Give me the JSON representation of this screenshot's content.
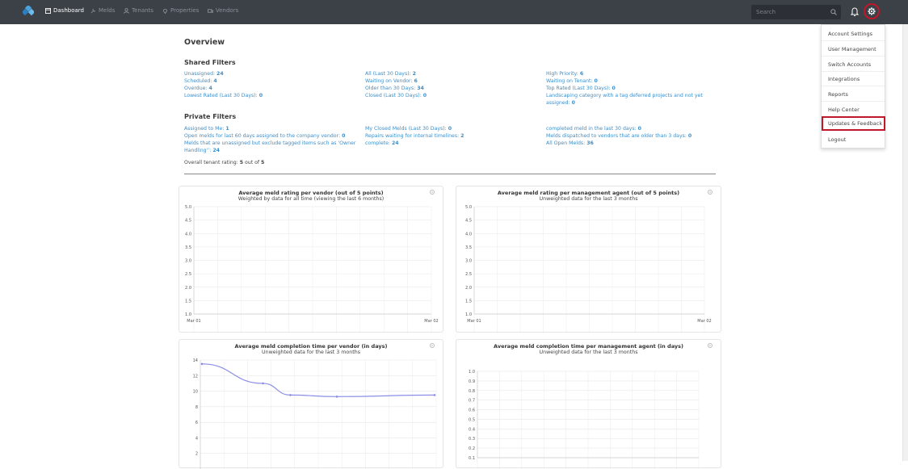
{
  "nav": {
    "items": [
      {
        "label": "Dashboard",
        "icon": "dashboard-icon",
        "active": true
      },
      {
        "label": "Melds",
        "icon": "wrench-icon",
        "active": false
      },
      {
        "label": "Tenants",
        "icon": "person-icon",
        "active": false
      },
      {
        "label": "Properties",
        "icon": "map-pin-icon",
        "active": false
      },
      {
        "label": "Vendors",
        "icon": "truck-icon",
        "active": false
      }
    ],
    "search_placeholder": "Search"
  },
  "overview": {
    "title": "Overview"
  },
  "shared_filters": {
    "title": "Shared Filters",
    "col1": [
      {
        "label": "Unassigned: ",
        "count": "24"
      },
      {
        "label": "Scheduled: ",
        "count": "4"
      },
      {
        "label": "Overdue: ",
        "count": "4"
      },
      {
        "label": "Lowest Rated (Last 30 Days): ",
        "count": "0"
      }
    ],
    "col2": [
      {
        "label": "All (Last 30 Days): ",
        "count": "2"
      },
      {
        "label": "Waiting on Vendor: ",
        "count": "6"
      },
      {
        "label": "Older than 30 Days: ",
        "count": "34"
      },
      {
        "label": "Closed (Last 30 Days): ",
        "count": "0"
      }
    ],
    "col3": [
      {
        "label": "High Priority: ",
        "count": "6"
      },
      {
        "label": "Waiting on Tenant: ",
        "count": "0"
      },
      {
        "label": "Top Rated (Last 30 Days): ",
        "count": "0"
      },
      {
        "label": "Landscaping category with a tag deferred projects and not yet assigned: ",
        "count": "0"
      }
    ]
  },
  "private_filters": {
    "title": "Private Filters",
    "col1": [
      {
        "label": "Assigned to Me: ",
        "count": "1"
      },
      {
        "label": "Open melds for last 60 days assigned to the company vendor: ",
        "count": "0"
      },
      {
        "label": "Melds that are unassigned but exclude tagged items such as 'Owner Handling'’: ",
        "count": "24"
      }
    ],
    "col2": [
      {
        "label": "My Closed Melds (Last 30 Days): ",
        "count": "0"
      },
      {
        "label": "Repairs waiting for internal timelines: ",
        "count": "2"
      },
      {
        "label": "complete: ",
        "count": "24"
      }
    ],
    "col3": [
      {
        "label": "completed meld in the last 30 days: ",
        "count": "0"
      },
      {
        "label": "Melds dispatched to vendors that are older than 3 days: ",
        "count": "0"
      },
      {
        "label": "All Open Melds: ",
        "count": "36"
      }
    ]
  },
  "tenant_rating": {
    "prefix": "Overall tenant rating: ",
    "value": "5",
    "mid": " out of ",
    "max": "5"
  },
  "dropdown": {
    "items": [
      {
        "label": "Account Settings",
        "highlighted": false
      },
      {
        "label": "User Management",
        "highlighted": false
      },
      {
        "label": "Switch Accounts",
        "highlighted": false
      },
      {
        "label": "Integrations",
        "highlighted": false
      },
      {
        "label": "Reports",
        "highlighted": false
      },
      {
        "label": "Help Center",
        "highlighted": false
      },
      {
        "label": "Updates & Feedback",
        "highlighted": true
      },
      {
        "label": "Logout",
        "highlighted": false
      }
    ]
  },
  "colors": {
    "nav_bg": "#3c4148",
    "link": "#3d8ec9",
    "highlight": "#c0172a",
    "line": "#8c8ee6"
  },
  "chart_data": [
    {
      "type": "line",
      "title": "Average meld rating per vendor (out of 5 points)",
      "subtitle": "Weighted by data for all time (viewing the last 6 months)",
      "x": [
        "Mar 01",
        "Mar 02"
      ],
      "ylim": [
        1.0,
        5.0
      ],
      "yticks": [
        "5.0",
        "4.5",
        "4.0",
        "3.5",
        "3.0",
        "2.5",
        "2.0",
        "1.5",
        "1.0"
      ],
      "series": []
    },
    {
      "type": "line",
      "title": "Average meld rating per management agent (out of 5 points)",
      "subtitle": "Unweighted data for the last 3 months",
      "x": [
        "Mar 01",
        "Mar 02"
      ],
      "ylim": [
        1.0,
        5.0
      ],
      "yticks": [
        "5.0",
        "4.5",
        "4.0",
        "3.5",
        "3.0",
        "2.5",
        "2.0",
        "1.5",
        "1.0"
      ],
      "series": []
    },
    {
      "type": "line",
      "title": "Average meld completion time per vendor (in days)",
      "subtitle": "Unweighted data for the last 3 months",
      "ylim": [
        0,
        14
      ],
      "yticks": [
        "14",
        "12",
        "10",
        "8",
        "6",
        "4",
        "2"
      ],
      "series": [
        {
          "values": [
            13.5,
            11.0,
            9.5,
            9.3,
            9.5
          ]
        }
      ]
    },
    {
      "type": "line",
      "title": "Average meld completion time per management agent (in days)",
      "subtitle": "Unweighted data for the last 3 months",
      "ylim": [
        0,
        1.0
      ],
      "yticks": [
        "1.0",
        "0.9",
        "0.8",
        "0.7",
        "0.6",
        "0.5",
        "0.4",
        "0.3",
        "0.2",
        "0.1"
      ],
      "series": []
    }
  ]
}
